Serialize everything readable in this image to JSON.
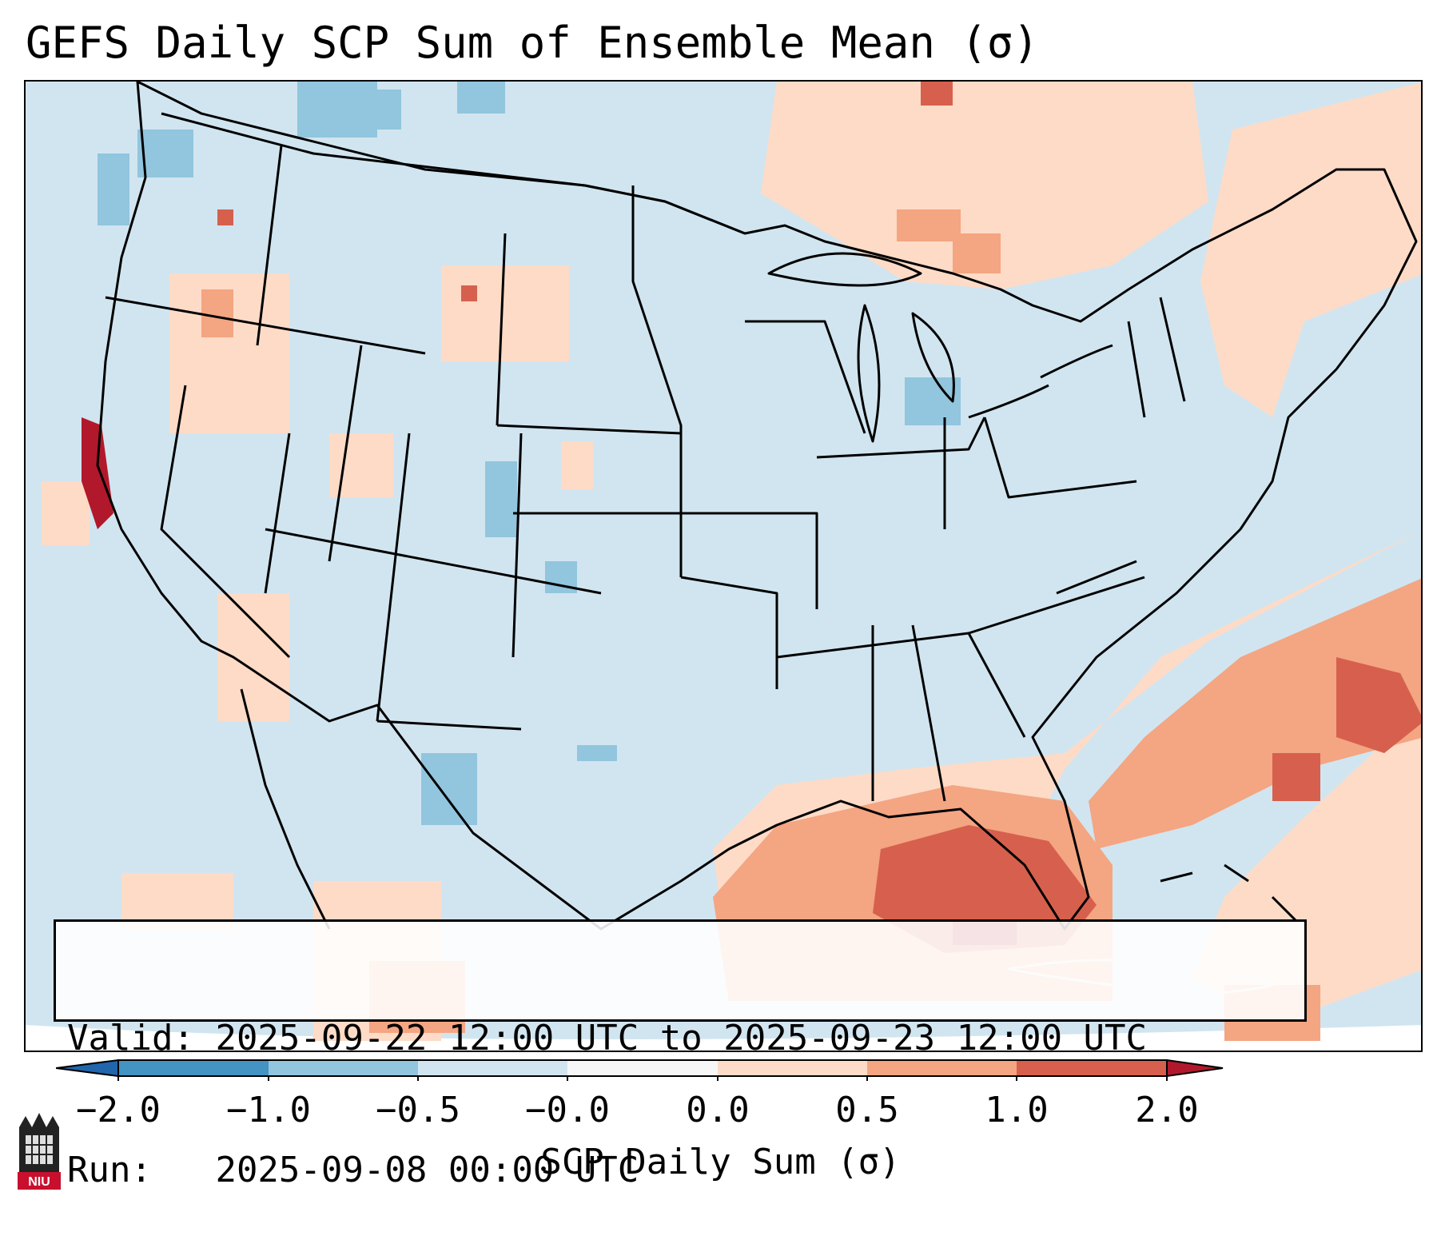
{
  "title": "GEFS Daily SCP Sum of Ensemble Mean (σ)",
  "info": {
    "valid_label": "Valid:",
    "valid_value": "2025-09-22 12:00 UTC to 2025-09-23 12:00 UTC",
    "run_label": "Run:",
    "run_value": "2025-09-08 00:00 UTC"
  },
  "colorbar": {
    "label": "SCP Daily Sum (σ)",
    "ticks": [
      "−2.0",
      "−1.0",
      "−0.5",
      "−0.0",
      "0.0",
      "0.5",
      "1.0",
      "2.0"
    ],
    "colors": [
      "#2166ac",
      "#4393c3",
      "#92c5de",
      "#d1e5f0",
      "#f7f7f7",
      "#fddbc7",
      "#f4a582",
      "#d6604d",
      "#b2182b"
    ]
  },
  "map": {
    "region": "Continental United States",
    "features": [
      "scp-high-gulf-of-mexico",
      "scp-high-western-atlantic",
      "scp-high-northern-california-coast",
      "scp-elevated-great-lakes-canada"
    ]
  },
  "logo": {
    "text": "NIU"
  }
}
